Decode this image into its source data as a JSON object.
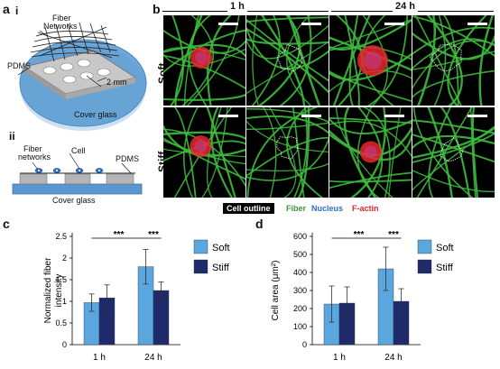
{
  "panel_a": {
    "letter": "a",
    "sub_i": "i",
    "sub_ii": "ii",
    "top_labels": {
      "fiber": "Fiber",
      "networks": "Networks",
      "pdms": "PDMS",
      "size": "2 mm",
      "glass": "Cover glass"
    },
    "side_labels": {
      "fiber": "Fiber",
      "networks": "networks",
      "cell": "Cell",
      "pdms": "PDMS",
      "glass": "Cover glass"
    }
  },
  "panel_b": {
    "letter": "b",
    "time_headers": [
      "1 h",
      "24 h"
    ],
    "row_labels": [
      "Soft",
      "Stiff"
    ],
    "legend": {
      "outline": "Cell outline",
      "fiber": "Fiber",
      "nucleus": "Nucleus",
      "factin": "F-actin"
    },
    "colors": {
      "fiber": "#3dbb3d",
      "nucleus": "#2a6fd1",
      "factin": "#e8272b",
      "outline": "#ffffff"
    }
  },
  "chart_data": [
    {
      "panel": "c",
      "type": "bar",
      "categories": [
        "1 h",
        "24 h"
      ],
      "ylabel_line1": "Normalized fiber",
      "ylabel_line2": "intensity",
      "ylim": [
        0,
        2.5
      ],
      "yticks": [
        "0",
        "0.5",
        "1",
        "1.5",
        "2",
        "2.5"
      ],
      "series": [
        {
          "name": "Soft",
          "color": "#5aa6de",
          "values": [
            0.97,
            1.8
          ],
          "errors": [
            0.2,
            0.4
          ]
        },
        {
          "name": "Stiff",
          "color": "#1f2a6b",
          "values": [
            1.08,
            1.25
          ],
          "errors": [
            0.3,
            0.2
          ]
        }
      ],
      "significance": [
        "***",
        "***"
      ]
    },
    {
      "panel": "d",
      "type": "bar",
      "categories": [
        "1 h",
        "24 h"
      ],
      "ylabel": "Cell area (μm²)",
      "ylim": [
        0,
        600
      ],
      "yticks": [
        "0",
        "100",
        "200",
        "300",
        "400",
        "500",
        "600"
      ],
      "series": [
        {
          "name": "Soft",
          "color": "#5aa6de",
          "values": [
            225,
            420
          ],
          "errors": [
            100,
            120
          ]
        },
        {
          "name": "Stiff",
          "color": "#1f2a6b",
          "values": [
            230,
            240
          ],
          "errors": [
            90,
            70
          ]
        }
      ],
      "significance": [
        "***",
        "***"
      ]
    }
  ]
}
